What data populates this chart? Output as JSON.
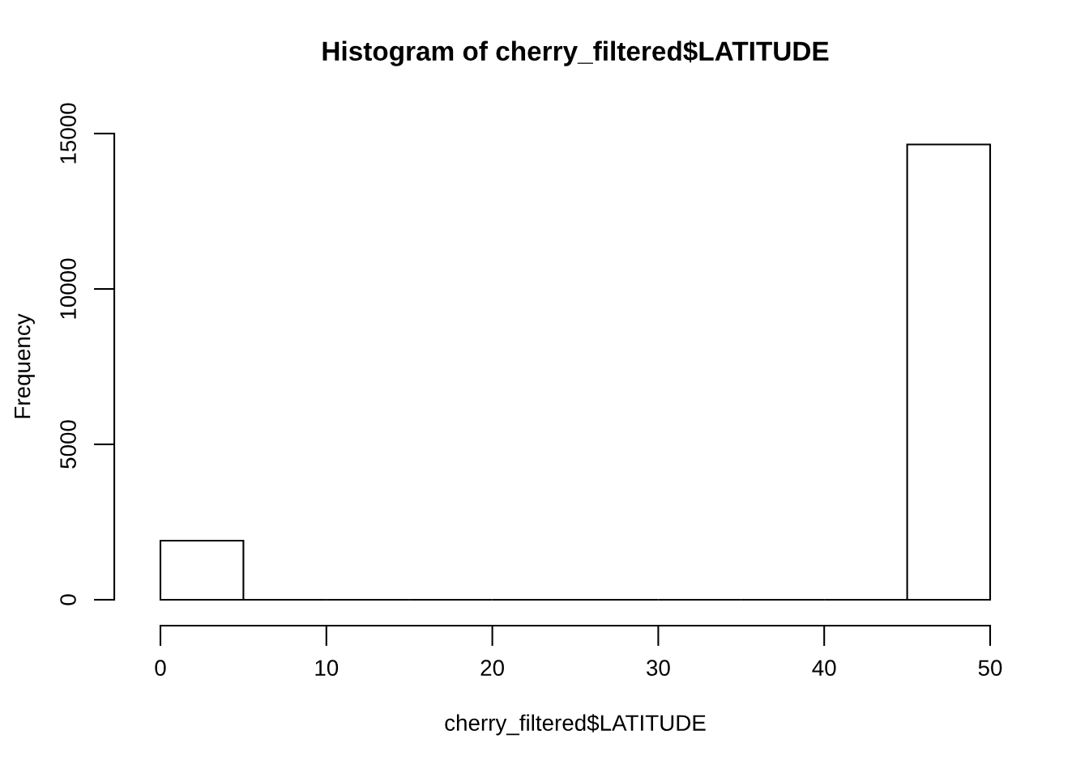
{
  "chart_data": {
    "type": "histogram",
    "title": "Histogram of cherry_filtered$LATITUDE",
    "xlabel": "cherry_filtered$LATITUDE",
    "ylabel": "Frequency",
    "bins": [
      0,
      5,
      10,
      15,
      20,
      25,
      30,
      35,
      40,
      45,
      50
    ],
    "values": [
      1900,
      0,
      0,
      0,
      0,
      0,
      0,
      0,
      0,
      14650
    ],
    "color": "#000000",
    "xlim": [
      0,
      50
    ],
    "ylim": [
      0,
      15000
    ],
    "xticks": [
      0,
      10,
      20,
      30,
      40,
      50
    ],
    "yticks": [
      0,
      5000,
      10000,
      15000
    ],
    "grid": false
  }
}
